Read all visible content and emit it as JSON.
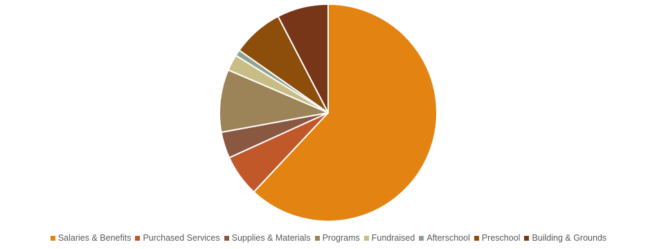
{
  "chart_data": {
    "type": "pie",
    "title": "",
    "slices": [
      {
        "label": "Salaries & Benefits",
        "value": 61.8,
        "color": "#E38311"
      },
      {
        "label": "Purchased Services",
        "value": 6.2,
        "color": "#C0582A"
      },
      {
        "label": "Supplies & Materials",
        "value": 3.9,
        "color": "#8A5741"
      },
      {
        "label": "Programs",
        "value": 9.3,
        "color": "#9C8358"
      },
      {
        "label": "Fundraised",
        "value": 2.4,
        "color": "#C8BE85"
      },
      {
        "label": "Afterschool",
        "value": 0.9,
        "color": "#8FA190"
      },
      {
        "label": "Preschool",
        "value": 7.6,
        "color": "#8C4E0A"
      },
      {
        "label": "Building & Grounds",
        "value": 7.6,
        "color": "#783619"
      }
    ],
    "legend": {
      "position": "bottom"
    },
    "start_angle": "12 o'clock",
    "direction": "clockwise"
  }
}
